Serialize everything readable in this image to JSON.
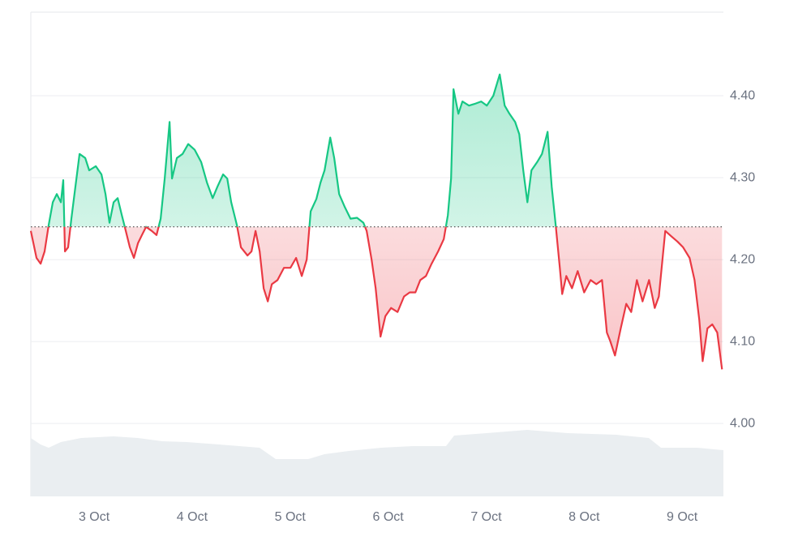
{
  "chart_data": {
    "type": "line",
    "x": [
      2.354,
      2.412,
      2.454,
      2.495,
      2.536,
      2.578,
      2.619,
      2.661,
      2.685,
      2.702,
      2.735,
      2.768,
      2.81,
      2.851,
      2.909,
      2.95,
      3.017,
      3.075,
      3.116,
      3.157,
      3.199,
      3.24,
      3.281,
      3.323,
      3.364,
      3.406,
      3.447,
      3.488,
      3.53,
      3.588,
      3.637,
      3.679,
      3.72,
      3.77,
      3.795,
      3.844,
      3.902,
      3.96,
      4.026,
      4.093,
      4.151,
      4.209,
      4.258,
      4.316,
      4.358,
      4.399,
      4.457,
      4.498,
      4.565,
      4.606,
      4.647,
      4.689,
      4.73,
      4.772,
      4.813,
      4.871,
      4.937,
      5.003,
      5.061,
      5.119,
      5.169,
      5.21,
      5.268,
      5.31,
      5.351,
      5.409,
      5.45,
      5.5,
      5.558,
      5.616,
      5.682,
      5.748,
      5.781,
      5.831,
      5.873,
      5.922,
      5.972,
      6.03,
      6.096,
      6.162,
      6.22,
      6.278,
      6.328,
      6.386,
      6.444,
      6.51,
      6.568,
      6.609,
      6.642,
      6.667,
      6.717,
      6.758,
      6.825,
      6.882,
      6.949,
      7.007,
      7.073,
      7.139,
      7.189,
      7.238,
      7.296,
      7.338,
      7.379,
      7.421,
      7.462,
      7.52,
      7.57,
      7.627,
      7.669,
      7.71,
      7.752,
      7.776,
      7.818,
      7.876,
      7.934,
      8.0,
      8.066,
      8.124,
      8.182,
      8.232,
      8.265,
      8.315,
      8.373,
      8.43,
      8.48,
      8.538,
      8.596,
      8.662,
      8.72,
      8.762,
      8.828,
      8.894,
      8.952,
      9.01,
      9.076,
      9.126,
      9.175,
      9.209,
      9.258,
      9.308,
      9.358,
      9.407
    ],
    "values": [
      4.235,
      4.202,
      4.195,
      4.21,
      4.242,
      4.27,
      4.28,
      4.27,
      4.297,
      4.21,
      4.215,
      4.25,
      4.29,
      4.329,
      4.324,
      4.309,
      4.314,
      4.304,
      4.28,
      4.245,
      4.27,
      4.275,
      4.255,
      4.235,
      4.215,
      4.202,
      4.22,
      4.23,
      4.24,
      4.235,
      4.23,
      4.25,
      4.299,
      4.368,
      4.299,
      4.324,
      4.329,
      4.341,
      4.334,
      4.319,
      4.294,
      4.275,
      4.289,
      4.304,
      4.299,
      4.27,
      4.242,
      4.215,
      4.205,
      4.21,
      4.235,
      4.21,
      4.165,
      4.149,
      4.17,
      4.175,
      4.19,
      4.19,
      4.202,
      4.18,
      4.2,
      4.259,
      4.274,
      4.294,
      4.309,
      4.349,
      4.324,
      4.28,
      4.264,
      4.25,
      4.251,
      4.245,
      4.235,
      4.2,
      4.165,
      4.106,
      4.131,
      4.141,
      4.136,
      4.155,
      4.16,
      4.16,
      4.175,
      4.18,
      4.195,
      4.21,
      4.225,
      4.254,
      4.299,
      4.408,
      4.378,
      4.393,
      4.388,
      4.39,
      4.393,
      4.388,
      4.4,
      4.426,
      4.388,
      4.378,
      4.368,
      4.353,
      4.309,
      4.27,
      4.309,
      4.319,
      4.329,
      4.356,
      4.289,
      4.242,
      4.19,
      4.158,
      4.18,
      4.165,
      4.186,
      4.16,
      4.175,
      4.17,
      4.175,
      4.111,
      4.101,
      4.083,
      4.116,
      4.146,
      4.136,
      4.175,
      4.149,
      4.175,
      4.141,
      4.155,
      4.235,
      4.228,
      4.222,
      4.215,
      4.202,
      4.175,
      4.126,
      4.076,
      4.116,
      4.121,
      4.111,
      4.066
    ],
    "baseline": 4.24,
    "color_up": "#16c784",
    "color_down": "#ea3943",
    "xlim": [
      2.354,
      9.421
    ],
    "xticks": [
      {
        "value": 3,
        "label": "3 Oct"
      },
      {
        "value": 4,
        "label": "4 Oct"
      },
      {
        "value": 5,
        "label": "5 Oct"
      },
      {
        "value": 6,
        "label": "6 Oct"
      },
      {
        "value": 7,
        "label": "7 Oct"
      },
      {
        "value": 8,
        "label": "8 Oct"
      },
      {
        "value": 9,
        "label": "9 Oct"
      }
    ],
    "ylim": [
      3.911,
      4.502
    ],
    "yticks": [
      {
        "value": 4.0,
        "label": "4.00"
      },
      {
        "value": 4.1,
        "label": "4.10"
      },
      {
        "value": 4.2,
        "label": "4.20"
      },
      {
        "value": 4.3,
        "label": "4.30"
      },
      {
        "value": 4.4,
        "label": "4.40"
      }
    ],
    "grid": true
  }
}
